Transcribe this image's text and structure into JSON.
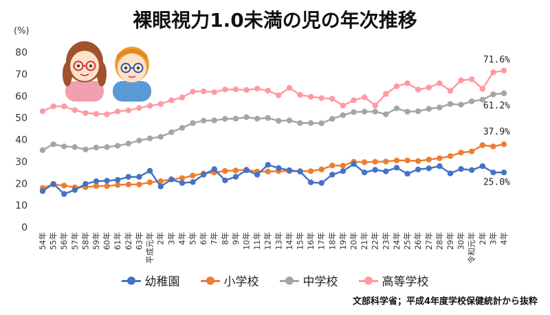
{
  "title": "裸眼視力1.0未満の児の年次推移",
  "unit_label": "(%)",
  "source": "文部科学省；平成4年度学校保健統計から抜粋",
  "chart_data": {
    "type": "line",
    "title": "裸眼視力1.0未満の児の年次推移",
    "ylabel": "(%)",
    "ylim": [
      0,
      80
    ],
    "yticks": [
      0,
      10,
      20,
      30,
      40,
      50,
      60,
      70,
      80
    ],
    "grid": false,
    "legend_position": "bottom",
    "categories": [
      "54年",
      "55年",
      "56年",
      "57年",
      "58年",
      "59年",
      "60年",
      "61年",
      "62年",
      "63年",
      "平成元年",
      "2年",
      "3年",
      "4年",
      "5年",
      "6年",
      "7年",
      "8年",
      "9年",
      "10年",
      "11年",
      "12年",
      "13年",
      "14年",
      "15年",
      "16年",
      "17年",
      "18年",
      "19年",
      "20年",
      "21年",
      "22年",
      "23年",
      "24年",
      "25年",
      "26年",
      "27年",
      "28年",
      "29年",
      "30年",
      "令和元年",
      "2年",
      "3年",
      "4年"
    ],
    "series": [
      {
        "name": "幼稚園",
        "color": "#4472c4",
        "values": [
          16.5,
          19.8,
          15.2,
          17.0,
          19.8,
          21.0,
          21.2,
          21.6,
          23.0,
          23.0,
          25.8,
          18.6,
          21.8,
          20.2,
          20.6,
          24.0,
          26.5,
          21.4,
          23.0,
          26.0,
          24.0,
          28.5,
          27.0,
          26.0,
          25.4,
          20.5,
          20.2,
          24.0,
          25.6,
          28.9,
          25.0,
          26.2,
          25.5,
          27.2,
          24.4,
          26.4,
          26.9,
          27.9,
          24.6,
          26.6,
          26.1,
          27.9,
          25.0,
          25.0
        ]
      },
      {
        "name": "小学校",
        "color": "#ed7d31",
        "values": [
          17.9,
          19.5,
          19.0,
          18.2,
          18.3,
          18.8,
          18.8,
          19.3,
          19.5,
          19.5,
          20.5,
          21.0,
          21.9,
          22.4,
          23.6,
          24.5,
          25.0,
          25.7,
          25.9,
          26.3,
          25.4,
          25.4,
          25.6,
          25.6,
          25.6,
          25.6,
          26.4,
          28.2,
          28.1,
          29.9,
          29.7,
          29.9,
          30.0,
          30.5,
          30.5,
          30.2,
          30.9,
          31.5,
          32.5,
          34.1,
          34.6,
          37.5,
          36.9,
          37.9
        ]
      },
      {
        "name": "中学校",
        "color": "#a5a5a5",
        "values": [
          35.2,
          37.9,
          36.9,
          36.6,
          35.5,
          36.4,
          36.6,
          37.2,
          38.2,
          39.6,
          40.6,
          41.3,
          43.4,
          45.4,
          47.6,
          48.7,
          48.8,
          49.5,
          49.6,
          50.3,
          49.6,
          49.9,
          48.6,
          48.8,
          47.6,
          47.6,
          47.5,
          49.5,
          51.2,
          52.6,
          52.8,
          52.8,
          51.6,
          54.3,
          52.8,
          53.0,
          54.1,
          54.7,
          56.3,
          56.0,
          57.5,
          58.3,
          60.7,
          61.2
        ]
      },
      {
        "name": "高等学校",
        "color": "#ff9aa2",
        "values": [
          53.0,
          55.2,
          55.2,
          53.5,
          52.2,
          51.8,
          51.6,
          52.9,
          53.4,
          54.5,
          55.5,
          56.3,
          58.0,
          59.3,
          62.0,
          62.1,
          61.7,
          62.9,
          63.0,
          62.7,
          63.3,
          62.4,
          60.3,
          63.7,
          60.5,
          59.6,
          59.0,
          58.7,
          55.6,
          58.0,
          59.4,
          55.6,
          60.9,
          64.4,
          65.8,
          62.9,
          63.8,
          65.8,
          62.3,
          67.1,
          67.6,
          63.2,
          70.8,
          71.6
        ]
      }
    ],
    "data_labels": [
      {
        "series": "高等学校",
        "text": "71.6%"
      },
      {
        "series": "中学校",
        "text": "61.2%"
      },
      {
        "series": "小学校",
        "text": "37.9%"
      },
      {
        "series": "幼稚園",
        "text": "25.0%"
      }
    ]
  },
  "legend": [
    {
      "label": "幼稚園",
      "color": "#4472c4"
    },
    {
      "label": "小学校",
      "color": "#ed7d31"
    },
    {
      "label": "中学校",
      "color": "#a5a5a5"
    },
    {
      "label": "高等学校",
      "color": "#ff9aa2"
    }
  ],
  "illustration": {
    "icon_names": [
      "girl-with-glasses-icon",
      "boy-with-glasses-icon"
    ]
  }
}
